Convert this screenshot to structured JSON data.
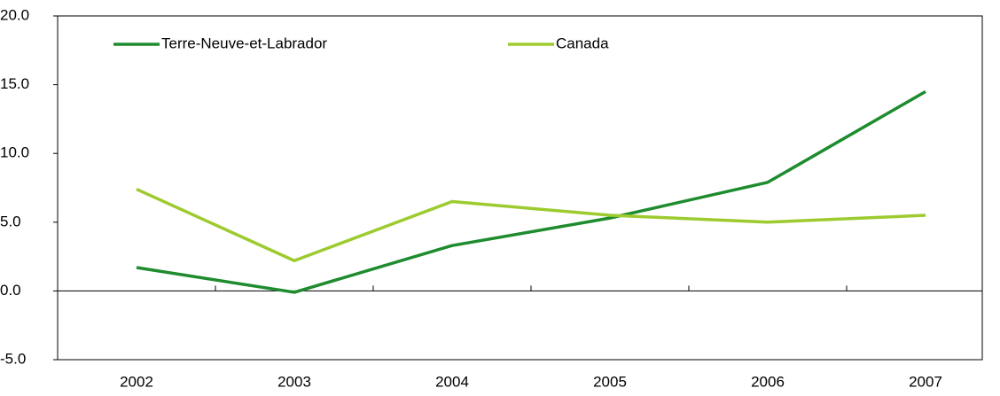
{
  "chart_data": {
    "type": "line",
    "categories": [
      "2002",
      "2003",
      "2004",
      "2005",
      "2006",
      "2007"
    ],
    "series": [
      {
        "name": "Terre-Neuve-et-Labrador",
        "color": "#1e8c2e",
        "values": [
          1.7,
          -0.1,
          3.3,
          5.3,
          7.9,
          14.5
        ]
      },
      {
        "name": "Canada",
        "color": "#9dcb2f",
        "values": [
          7.4,
          2.2,
          6.5,
          5.5,
          5.0,
          5.5
        ]
      }
    ],
    "ylim": [
      -5,
      20
    ],
    "yticks": [
      {
        "value": -5,
        "label": "-5.0"
      },
      {
        "value": 0,
        "label": "0.0"
      },
      {
        "value": 5,
        "label": "5.0"
      },
      {
        "value": 10,
        "label": "10.0"
      },
      {
        "value": 15,
        "label": "15.0"
      },
      {
        "value": 20,
        "label": "20.0"
      }
    ],
    "legend": "top-left"
  }
}
